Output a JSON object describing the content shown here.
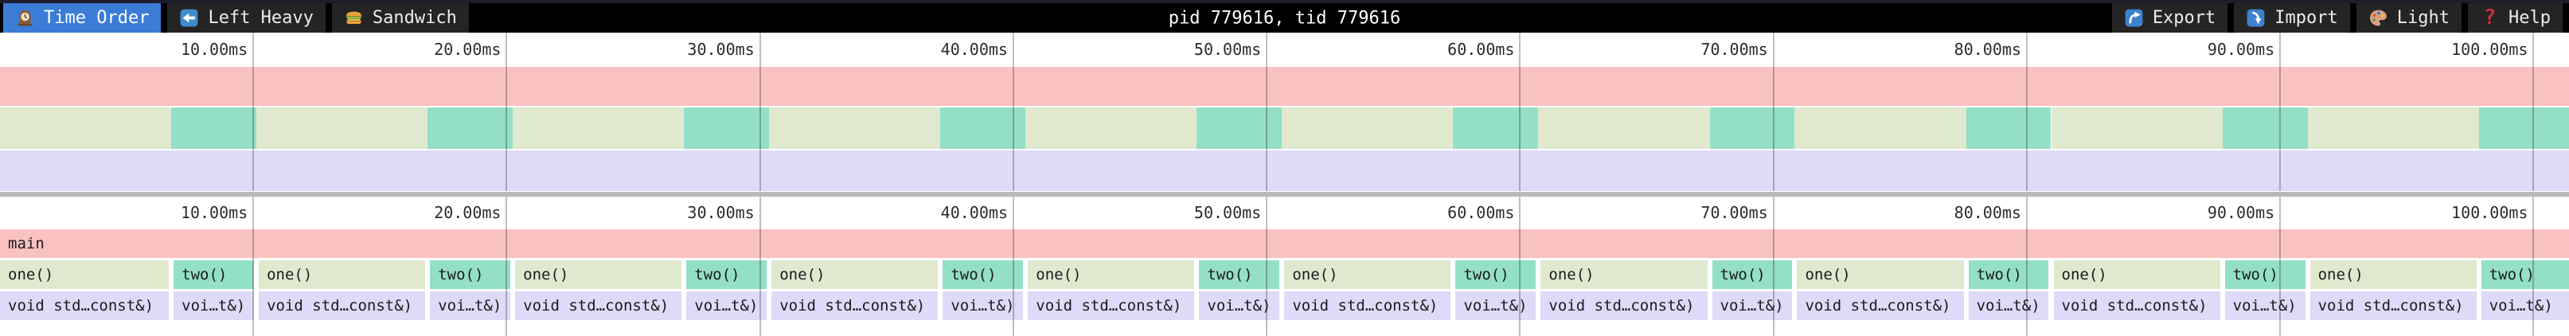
{
  "toolbar": {
    "tabs": [
      {
        "id": "time-order",
        "label": "Time Order",
        "icon": "clock-icon",
        "active": true
      },
      {
        "id": "left-heavy",
        "label": "Left Heavy",
        "icon": "left-arrow-icon",
        "active": false
      },
      {
        "id": "sandwich",
        "label": "Sandwich",
        "icon": "sandwich-icon",
        "active": false
      }
    ],
    "title": "pid 779616, tid 779616",
    "actions": [
      {
        "id": "export",
        "label": "Export",
        "icon": "export-icon"
      },
      {
        "id": "import",
        "label": "Import",
        "icon": "import-icon"
      },
      {
        "id": "light",
        "label": "Light",
        "icon": "palette-icon"
      },
      {
        "id": "help",
        "label": "Help",
        "icon": "help-icon"
      }
    ]
  },
  "timeline": {
    "unit": "ms",
    "tick_interval_ms": 10,
    "ticks": [
      {
        "ms": 10,
        "label": "10.00ms"
      },
      {
        "ms": 20,
        "label": "20.00ms"
      },
      {
        "ms": 30,
        "label": "30.00ms"
      },
      {
        "ms": 40,
        "label": "40.00ms"
      },
      {
        "ms": 50,
        "label": "50.00ms"
      },
      {
        "ms": 60,
        "label": "60.00ms"
      },
      {
        "ms": 70,
        "label": "70.00ms"
      },
      {
        "ms": 80,
        "label": "80.00ms"
      },
      {
        "ms": 90,
        "label": "90.00ms"
      },
      {
        "ms": 100,
        "label": "100.00ms"
      }
    ]
  },
  "profile": {
    "total_ms": 101.4,
    "root": {
      "label": "main",
      "color_key": "pink"
    },
    "iterations": 10,
    "iteration_pattern": [
      {
        "label": "one()",
        "child_label": "void std…const&)",
        "duration_ms": 6.76,
        "color_key": "green"
      },
      {
        "label": "two()",
        "child_label": "voi…t&)",
        "duration_ms": 3.36,
        "color_key": "teal"
      }
    ],
    "child_color_key": "lavender"
  },
  "colors": {
    "accent_blue": "#3b7cd7",
    "toolbar_bg": "#000000",
    "tab_bg": "#242424",
    "pink": "#fac1c1",
    "green": "#e0e9ce",
    "teal": "#93dfc8",
    "lavender": "#dedaf8",
    "divider": "#b9b9b9",
    "grid_line": "rgba(25,25,25,0.28)"
  }
}
